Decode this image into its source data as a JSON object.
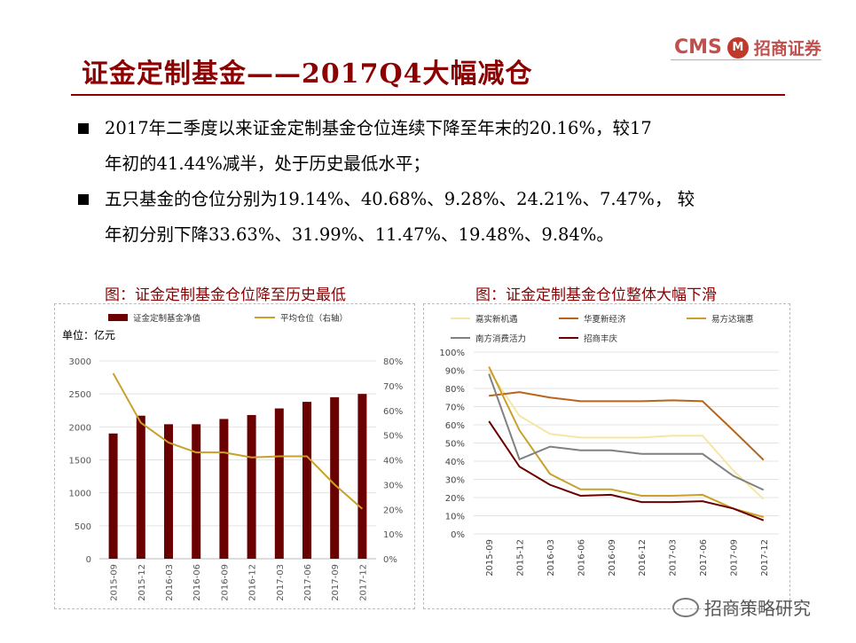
{
  "header": {
    "title": "证金定制基金——2017Q4大幅减仓",
    "logo_cms": "CMS",
    "logo_mark": "M",
    "logo_name": "招商证券"
  },
  "bullets": [
    {
      "line1": "2017年二季度以来证金定制基金仓位连续下降至年末的20.16%，较17",
      "line2": "年初的41.44%减半，处于历史最低水平；"
    },
    {
      "line1": "五只基金的仓位分别为19.14%、40.68%、9.28%、24.21%、7.47%，  较",
      "line2": "年初分别下降33.63%、31.99%、11.47%、19.48%、9.84%。"
    }
  ],
  "captions": {
    "left": "图：证金定制基金仓位降至历史最低",
    "right": "图：证金定制基金仓位整体大幅下滑"
  },
  "watermark": "招商策略研究",
  "colors": {
    "bar": "#6B0000",
    "avg_line": "#C9A02A",
    "jiashi": "#F5E6A3",
    "huaxia": "#B8651B",
    "yifangda": "#C9A02A",
    "nanfang": "#808080",
    "zhaoshang": "#6B0000"
  },
  "chart_data": [
    {
      "type": "bar",
      "unit_label": "单位：亿元",
      "categories": [
        "2015-09",
        "2015-12",
        "2016-03",
        "2016-06",
        "2016-09",
        "2016-12",
        "2017-03",
        "2017-06",
        "2017-09",
        "2017-12"
      ],
      "series": [
        {
          "name": "证金定制基金净值",
          "type": "bar",
          "axis": "left",
          "values": [
            1900,
            2170,
            2040,
            2040,
            2120,
            2180,
            2280,
            2380,
            2450,
            2500
          ]
        },
        {
          "name": "平均仓位（右轴）",
          "type": "line",
          "axis": "right",
          "values": [
            75,
            55,
            47,
            43,
            43,
            41,
            41.44,
            41.44,
            30,
            20.16
          ]
        }
      ],
      "yticks_left": [
        "0",
        "500",
        "1000",
        "1500",
        "2000",
        "2500",
        "3000"
      ],
      "yticks_right": [
        "0%",
        "10%",
        "20%",
        "30%",
        "40%",
        "50%",
        "60%",
        "70%",
        "80%"
      ],
      "ylim_left": [
        0,
        3000
      ],
      "ylim_right": [
        0,
        80
      ]
    },
    {
      "type": "line",
      "categories": [
        "2015-09",
        "2015-12",
        "2016-03",
        "2016-06",
        "2016-09",
        "2016-12",
        "2017-03",
        "2017-06",
        "2017-09",
        "2017-12"
      ],
      "series": [
        {
          "name": "嘉实新机遇",
          "values": [
            90,
            65,
            55,
            53,
            53,
            53,
            54,
            54,
            35,
            19.14
          ]
        },
        {
          "name": "华夏新经济",
          "values": [
            76,
            78,
            75,
            73,
            73,
            73,
            73.5,
            73,
            57,
            40.68
          ]
        },
        {
          "name": "易方达瑞惠",
          "values": [
            92,
            57,
            33,
            24.5,
            24.5,
            21,
            21,
            21.5,
            14,
            9.28
          ]
        },
        {
          "name": "南方消费活力",
          "values": [
            88,
            41,
            48,
            46,
            46,
            44,
            44,
            44,
            32,
            24.21
          ]
        },
        {
          "name": "招商丰庆",
          "values": [
            62,
            37,
            27,
            21,
            21.5,
            17.5,
            17.5,
            18,
            14,
            7.47
          ]
        }
      ],
      "yticks": [
        "0%",
        "10%",
        "20%",
        "30%",
        "40%",
        "50%",
        "60%",
        "70%",
        "80%",
        "90%",
        "100%"
      ],
      "ylim": [
        0,
        100
      ]
    }
  ]
}
